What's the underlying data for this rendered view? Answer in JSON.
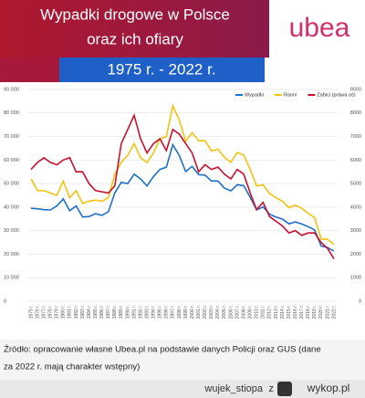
{
  "chart_data": {
    "type": "line",
    "title": [
      "Wypadki drogowe w Polsce",
      "oraz ich ofiary"
    ],
    "subtitle": "1975 r. - 2022 r.",
    "logo": "ubea",
    "source": [
      "Źródło: opracowanie własne Ubea.pl na podstawie danych Policji oraz GUS (dane",
      "za 2022 r. mają charakter wstępny)"
    ],
    "footer": [
      "wujek_stiopa",
      "z",
      "wykop.pl"
    ],
    "categories": [
      "1975 r.",
      "1976 r.",
      "1977 r.",
      "1978 r.",
      "1979 r.",
      "1980 r.",
      "1981 r.",
      "1982 r.",
      "1983 r.",
      "1984 r.",
      "1985 r.",
      "1986 r.",
      "1987 r.",
      "1988 r.",
      "1989 r.",
      "1990 r.",
      "1991 r.",
      "1992 r.",
      "1993 r.",
      "1994 r.",
      "1995 r.",
      "1996 r.",
      "1997 r.",
      "1998 r.",
      "1999 r.",
      "2000 r.",
      "2001 r.",
      "2002 r.",
      "2003 r.",
      "2004 r.",
      "2005 r.",
      "2006 r.",
      "2007 r.",
      "2008 r.",
      "2009 r.",
      "2010 r.",
      "2011 r.",
      "2012 r.",
      "2013 r.",
      "2014 r.",
      "2015 r.",
      "2016 r.",
      "2017 r.",
      "2018 r.",
      "2019 r.",
      "2020 r.",
      "2021 r.",
      "2022 r."
    ],
    "series": [
      {
        "name": "Wypadki",
        "color": "#1f6fc5",
        "values": [
          39500,
          39300,
          38900,
          38800,
          40500,
          43500,
          38500,
          40500,
          35800,
          36000,
          37200,
          36500,
          38000,
          46000,
          50500,
          50000,
          54000,
          52000,
          49000,
          53000,
          56000,
          57000,
          66500,
          61900,
          55100,
          57300,
          53800,
          53600,
          51100,
          51100,
          48100,
          46900,
          49500,
          49100,
          44200,
          38800,
          40100,
          37000,
          35800,
          34900,
          32900,
          33700,
          32800,
          31700,
          30300,
          23500,
          22800,
          21300
        ]
      },
      {
        "name": "Ranni",
        "color": "#f5c211",
        "values": [
          52000,
          47000,
          47000,
          46000,
          45000,
          51000,
          44000,
          47000,
          41500,
          42500,
          43000,
          42500,
          44000,
          54000,
          59000,
          62000,
          67000,
          61000,
          59000,
          63000,
          69000,
          70000,
          83000,
          77000,
          68000,
          71600,
          68200,
          68200,
          63900,
          64600,
          61200,
          59100,
          63200,
          62100,
          56000,
          49000,
          49500,
          45800,
          44000,
          42500,
          39800,
          40800,
          39500,
          37400,
          35500,
          26500,
          26300,
          24200
        ]
      },
      {
        "name": "Zabici (prawa oś)",
        "color": "#c8102e",
        "axis": "y2",
        "values": [
          5600,
          5900,
          6100,
          5900,
          5800,
          6000,
          6100,
          5500,
          5500,
          5000,
          4700,
          4650,
          4600,
          4900,
          6700,
          7300,
          7900,
          6900,
          6300,
          6700,
          6900,
          6400,
          7300,
          7100,
          6700,
          6300,
          5500,
          5800,
          5600,
          5700,
          5400,
          5200,
          5600,
          5400,
          4600,
          3900,
          4200,
          3600,
          3400,
          3200,
          2900,
          3000,
          2800,
          2900,
          2900,
          2500,
          2250,
          1800
        ]
      }
    ],
    "ylim": [
      0,
      90000
    ],
    "yticks": [
      0,
      {
        "value": 10000,
        "label": "10 000"
      },
      {
        "value": 20000,
        "label": "20 000"
      },
      {
        "value": 30000,
        "label": "30 000"
      },
      {
        "value": 40000,
        "label": "40 000"
      },
      {
        "value": 50000,
        "label": "50 000"
      },
      {
        "value": 60000,
        "label": "60 000"
      },
      {
        "value": 70000,
        "label": "70 000"
      },
      {
        "value": 80000,
        "label": "80 000"
      },
      {
        "value": 90000,
        "label": "90 000"
      }
    ],
    "y2lim": [
      0,
      9000
    ],
    "y2ticks": [
      0,
      1000,
      2000,
      3000,
      4000,
      5000,
      6000,
      7000,
      8000,
      9000
    ],
    "grid": true,
    "legend": "top-right"
  }
}
